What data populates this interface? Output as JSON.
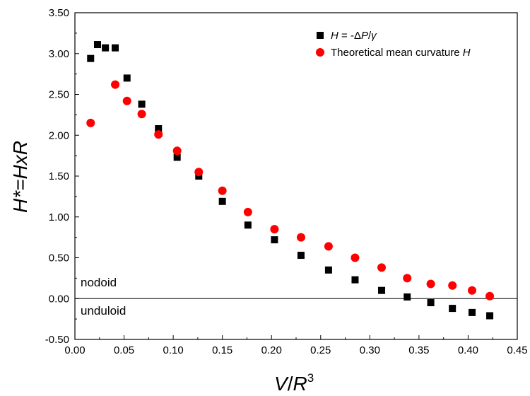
{
  "chart_data": {
    "type": "scatter",
    "title": "",
    "xlabel": {
      "main": "V",
      "slash": "/",
      "r": "R",
      "sup": "3"
    },
    "ylabel": "H*=HxR",
    "xlim": [
      0.0,
      0.45
    ],
    "ylim": [
      -0.5,
      3.5
    ],
    "xticks": [
      "0.00",
      "0.05",
      "0.10",
      "0.15",
      "0.20",
      "0.25",
      "0.30",
      "0.35",
      "0.40",
      "0.45"
    ],
    "yticks": [
      "-0.50",
      "0.00",
      "0.50",
      "1.00",
      "1.50",
      "2.00",
      "2.50",
      "3.00",
      "3.50"
    ],
    "grid": false,
    "legend_position": "top-right",
    "zero_line": true,
    "annotations": [
      {
        "text": "nodoid",
        "x": 0.012,
        "y": 0.09
      },
      {
        "text": "unduloid",
        "x": 0.012,
        "y": -0.09
      }
    ],
    "series": [
      {
        "name": "H = -ΔP/γ",
        "legend": {
          "H": "H",
          "mid": " = -",
          "delta": "Δ",
          "P": "P",
          "slash": "/",
          "gamma": "γ"
        },
        "marker": "square",
        "color": "#000000",
        "points": [
          [
            0.016,
            2.94
          ],
          [
            0.023,
            3.11
          ],
          [
            0.031,
            3.07
          ],
          [
            0.041,
            3.07
          ],
          [
            0.053,
            2.7
          ],
          [
            0.068,
            2.38
          ],
          [
            0.085,
            2.08
          ],
          [
            0.104,
            1.73
          ],
          [
            0.126,
            1.5
          ],
          [
            0.15,
            1.19
          ],
          [
            0.176,
            0.9
          ],
          [
            0.203,
            0.72
          ],
          [
            0.23,
            0.53
          ],
          [
            0.258,
            0.35
          ],
          [
            0.285,
            0.23
          ],
          [
            0.312,
            0.1
          ],
          [
            0.338,
            0.02
          ],
          [
            0.362,
            -0.05
          ],
          [
            0.384,
            -0.12
          ],
          [
            0.404,
            -0.17
          ],
          [
            0.422,
            -0.21
          ]
        ]
      },
      {
        "name": "Theoretical mean curvature H",
        "legend": {
          "prefix": "Theoretical mean curvature ",
          "H": "H"
        },
        "marker": "circle",
        "color": "#ff0000",
        "points": [
          [
            0.016,
            2.15
          ],
          [
            0.041,
            2.62
          ],
          [
            0.053,
            2.42
          ],
          [
            0.068,
            2.26
          ],
          [
            0.085,
            2.01
          ],
          [
            0.104,
            1.81
          ],
          [
            0.126,
            1.55
          ],
          [
            0.15,
            1.32
          ],
          [
            0.176,
            1.06
          ],
          [
            0.203,
            0.85
          ],
          [
            0.23,
            0.75
          ],
          [
            0.258,
            0.64
          ],
          [
            0.285,
            0.5
          ],
          [
            0.312,
            0.38
          ],
          [
            0.338,
            0.25
          ],
          [
            0.362,
            0.18
          ],
          [
            0.384,
            0.16
          ],
          [
            0.404,
            0.1
          ],
          [
            0.422,
            0.03
          ]
        ]
      }
    ]
  }
}
